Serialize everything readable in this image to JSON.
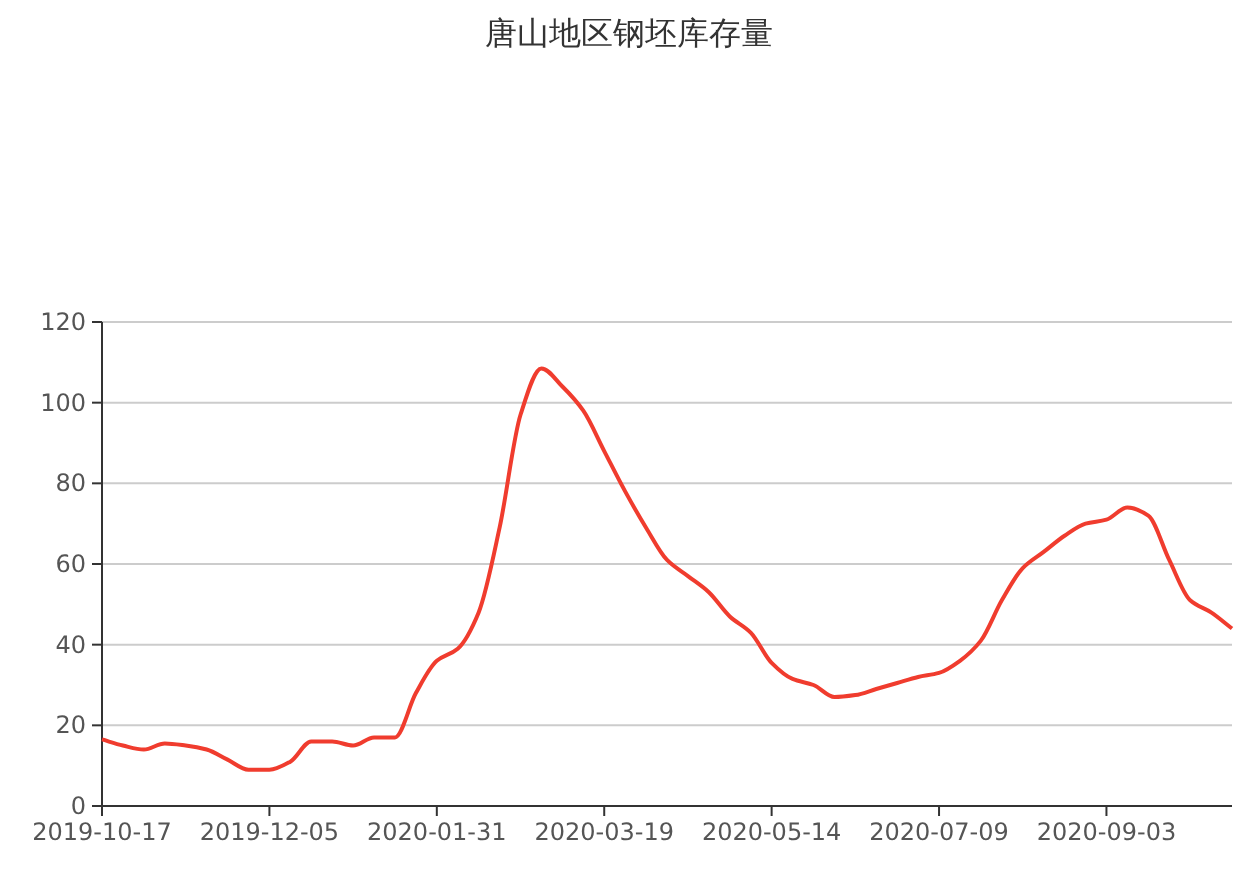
{
  "chart_data": {
    "type": "line",
    "title": "唐山地区钢坯库存量",
    "categories": [
      "2019-10-17",
      null,
      null,
      null,
      null,
      null,
      null,
      null,
      "2019-12-05",
      null,
      null,
      null,
      null,
      null,
      null,
      null,
      "2020-01-31",
      null,
      null,
      null,
      null,
      null,
      null,
      null,
      "2020-03-19",
      null,
      null,
      null,
      null,
      null,
      null,
      null,
      "2020-05-14",
      null,
      null,
      null,
      null,
      null,
      null,
      null,
      "2020-07-09",
      null,
      null,
      null,
      null,
      null,
      null,
      null,
      "2020-09-03",
      null,
      null,
      null,
      null,
      null,
      null
    ],
    "series": [
      {
        "color": "#f03c2e",
        "values": [
          16.5,
          15,
          14,
          15.5,
          15,
          14,
          11.5,
          9,
          9,
          11,
          16,
          16,
          15,
          17,
          17,
          28,
          36,
          39,
          48,
          69,
          97,
          108.5,
          104,
          98,
          88,
          78,
          69,
          61,
          57,
          53,
          47,
          43,
          35.5,
          31.5,
          30,
          27,
          27.5,
          29,
          30.5,
          32,
          33,
          36,
          41,
          51,
          59,
          63,
          67,
          70,
          71,
          74,
          72,
          61,
          51,
          48,
          44
        ]
      }
    ],
    "ylim": [
      0,
      120
    ],
    "yticks": [
      0,
      20,
      40,
      60,
      80,
      100,
      120
    ],
    "grid": "y",
    "line_style": "solid"
  }
}
